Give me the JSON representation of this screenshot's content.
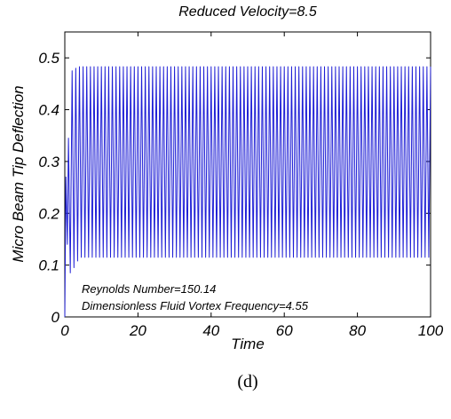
{
  "chart_data": {
    "type": "line",
    "title": "Reduced Velocity=8.5",
    "xlabel": "Time",
    "ylabel": "Micro Beam Tip Deflection",
    "xlim": [
      0,
      100
    ],
    "ylim": [
      0,
      0.55
    ],
    "x_ticks": [
      "0",
      "20",
      "40",
      "60",
      "80",
      "100"
    ],
    "y_ticks": [
      "0",
      "0.1",
      "0.2",
      "0.3",
      "0.4",
      "0.5"
    ],
    "grid": false,
    "legend": "none",
    "color": "#1f1fd6",
    "series": [
      {
        "oscillation_period": 1.0,
        "steady_max": 0.483,
        "steady_min": 0.115,
        "transient_points": [
          {
            "x": 0.0,
            "y": 0.0
          },
          {
            "x": 0.3,
            "y": 0.27
          },
          {
            "x": 0.7,
            "y": 0.14
          },
          {
            "x": 1.0,
            "y": 0.345
          },
          {
            "x": 1.5,
            "y": 0.085
          },
          {
            "x": 2.0,
            "y": 0.475
          },
          {
            "x": 2.5,
            "y": 0.095
          },
          {
            "x": 3.0,
            "y": 0.48
          },
          {
            "x": 3.5,
            "y": 0.108
          },
          {
            "x": 4.0,
            "y": 0.483
          }
        ]
      }
    ],
    "annotations": [
      "Reynolds Number=150.14",
      "Dimensionless Fluid Vortex Frequency=4.55"
    ]
  },
  "caption": "(d)"
}
